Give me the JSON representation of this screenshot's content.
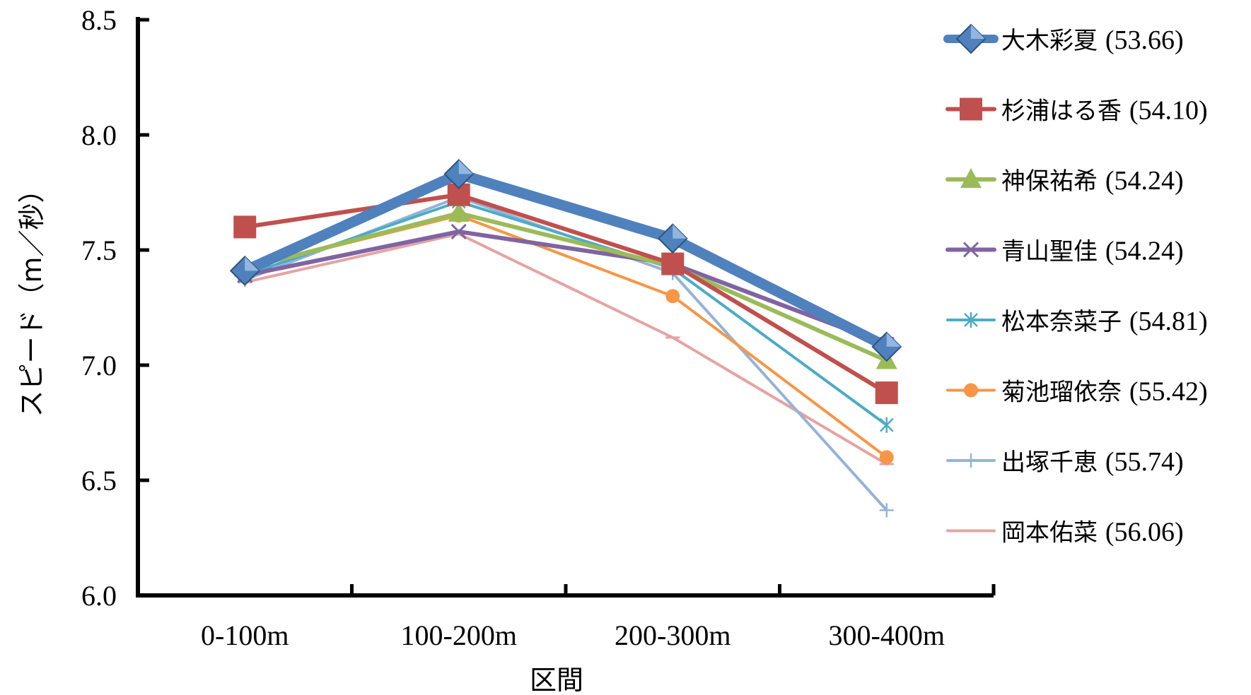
{
  "chart_data": {
    "type": "line",
    "xlabel": "区間",
    "ylabel": "スピード（m／秒）",
    "categories": [
      "0-100m",
      "100-200m",
      "200-300m",
      "300-400m"
    ],
    "ylim": [
      6.0,
      8.5
    ],
    "yticks": [
      "6.0",
      "6.5",
      "7.0",
      "7.5",
      "8.0",
      "8.5"
    ],
    "grid": false,
    "legend_position": "right",
    "series": [
      {
        "name": "大木彩夏",
        "time": "(53.66)",
        "values": [
          7.41,
          7.83,
          7.55,
          7.08
        ],
        "color": "#4F81BD",
        "marker": "diamond"
      },
      {
        "name": "杉浦はる香",
        "time": "(54.10)",
        "values": [
          7.6,
          7.74,
          7.44,
          6.88
        ],
        "color": "#C0504D",
        "marker": "square"
      },
      {
        "name": "神保祐希",
        "time": "(54.24)",
        "values": [
          7.42,
          7.66,
          7.43,
          7.02
        ],
        "color": "#9BBB59",
        "marker": "triangle"
      },
      {
        "name": "青山聖佳",
        "time": "(54.24)",
        "values": [
          7.39,
          7.58,
          7.44,
          7.09
        ],
        "color": "#8064A2",
        "marker": "x"
      },
      {
        "name": "松本奈菜子",
        "time": "(54.81)",
        "values": [
          7.39,
          7.71,
          7.42,
          6.74
        ],
        "color": "#4BACC6",
        "marker": "asterisk"
      },
      {
        "name": "菊池瑠依奈",
        "time": "(55.42)",
        "values": [
          7.42,
          7.65,
          7.3,
          6.6
        ],
        "color": "#F79646",
        "marker": "circle"
      },
      {
        "name": "出塚千恵",
        "time": "(55.74)",
        "values": [
          7.37,
          7.73,
          7.4,
          6.37
        ],
        "color": "#95B3D7",
        "marker": "plus"
      },
      {
        "name": "岡本佑菜",
        "time": "(56.06)",
        "values": [
          7.36,
          7.57,
          7.12,
          6.57
        ],
        "color": "#E6A3A3",
        "marker": "dash"
      }
    ]
  }
}
